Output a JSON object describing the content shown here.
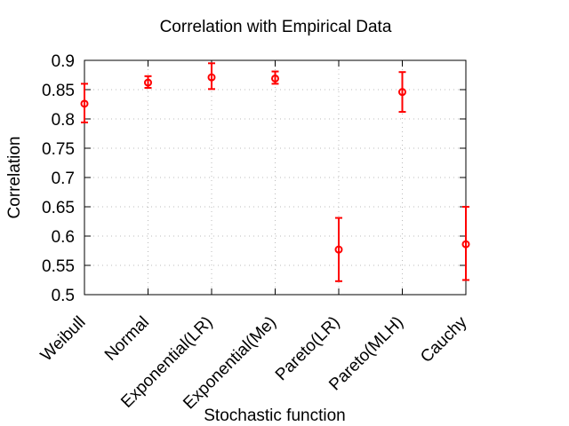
{
  "chart_data": {
    "type": "scatter",
    "title": "Correlation with Empirical Data",
    "xlabel": "Stochastic function",
    "ylabel": "Correlation",
    "categories": [
      "Weibull",
      "Normal",
      "Exponential(LR)",
      "Exponential(Me)",
      "Pareto(LR)",
      "Pareto(MLH)",
      "Cauchy"
    ],
    "ylim": [
      0.5,
      0.9
    ],
    "yticks": [
      "0.5",
      "0.55",
      "0.6",
      "0.65",
      "0.7",
      "0.75",
      "0.8",
      "0.85",
      "0.9"
    ],
    "grid": true,
    "series": [
      {
        "color": "#ff0000",
        "marker": "open-circle",
        "values": [
          0.826,
          0.862,
          0.871,
          0.869,
          0.577,
          0.846,
          0.586
        ],
        "err_low": [
          0.794,
          0.853,
          0.851,
          0.86,
          0.523,
          0.812,
          0.525
        ],
        "err_high": [
          0.86,
          0.873,
          0.895,
          0.881,
          0.631,
          0.88,
          0.65
        ]
      }
    ]
  }
}
